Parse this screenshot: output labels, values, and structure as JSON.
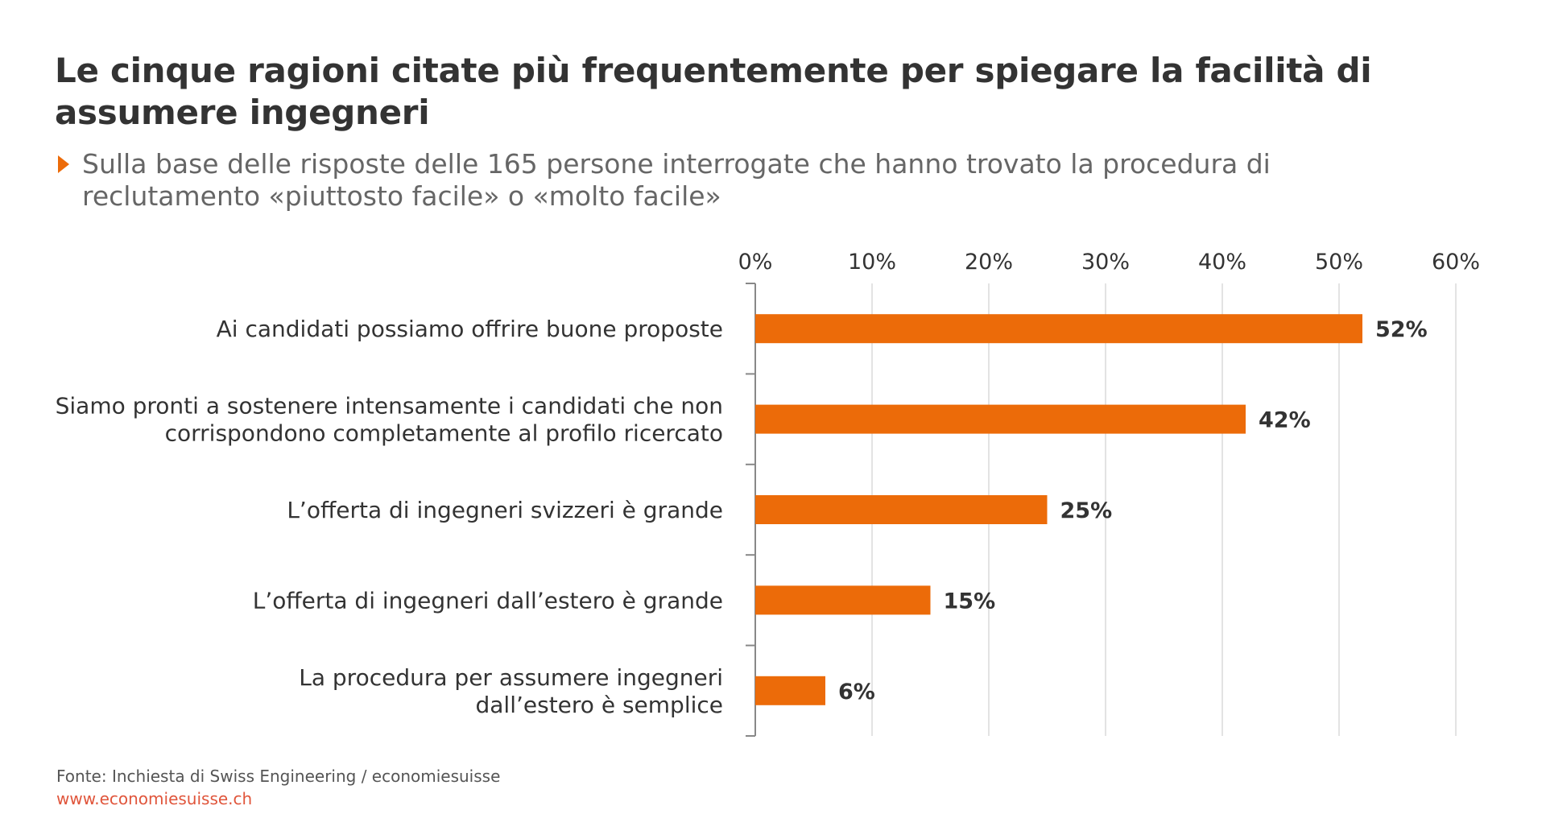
{
  "title": "Le cinque ragioni citate più frequentemente per spiegare la facilità di assumere ingegneri",
  "subtitle": "Sulla base delle risposte delle 165 persone interrogate che hanno trovato la procedura di reclutamento «piuttosto facile» o «molto facile»",
  "footer": {
    "source": "Fonte: Inchiesta di Swiss Engineering / economiesuisse",
    "url": "www.economiesuisse.ch"
  },
  "colors": {
    "bar": "#ec6b09",
    "grid": "#d0d0d0",
    "axis": "#888888",
    "text": "#333333"
  },
  "chart_data": {
    "type": "bar",
    "orientation": "horizontal",
    "title": "Le cinque ragioni citate più frequentemente per spiegare la facilità di assumere ingegneri",
    "subtitle": "Sulla base delle risposte delle 165 persone interrogate che hanno trovato la procedura di reclutamento «piuttosto facile» o «molto facile»",
    "categories": [
      [
        "Ai candidati possiamo offrire buone proposte"
      ],
      [
        "Siamo pronti a sostenere intensamente i candidati che non",
        "corrispondono completamente al profilo ricercato"
      ],
      [
        "L’offerta di ingegneri svizzeri è grande"
      ],
      [
        "L’offerta di ingegneri dall’estero è grande"
      ],
      [
        "La procedura  per assumere ingegneri",
        "dall’estero è semplice"
      ]
    ],
    "values": [
      52,
      42,
      25,
      15,
      6
    ],
    "value_labels": [
      "52%",
      "42%",
      "25%",
      "15%",
      "6%"
    ],
    "xlim": [
      0,
      60
    ],
    "xticks": [
      0,
      10,
      20,
      30,
      40,
      50,
      60
    ],
    "xtick_labels": [
      "0%",
      "10%",
      "20%",
      "30%",
      "40%",
      "50%",
      "60%"
    ],
    "x_axis_position": "top",
    "grid": true,
    "legend": "none"
  }
}
